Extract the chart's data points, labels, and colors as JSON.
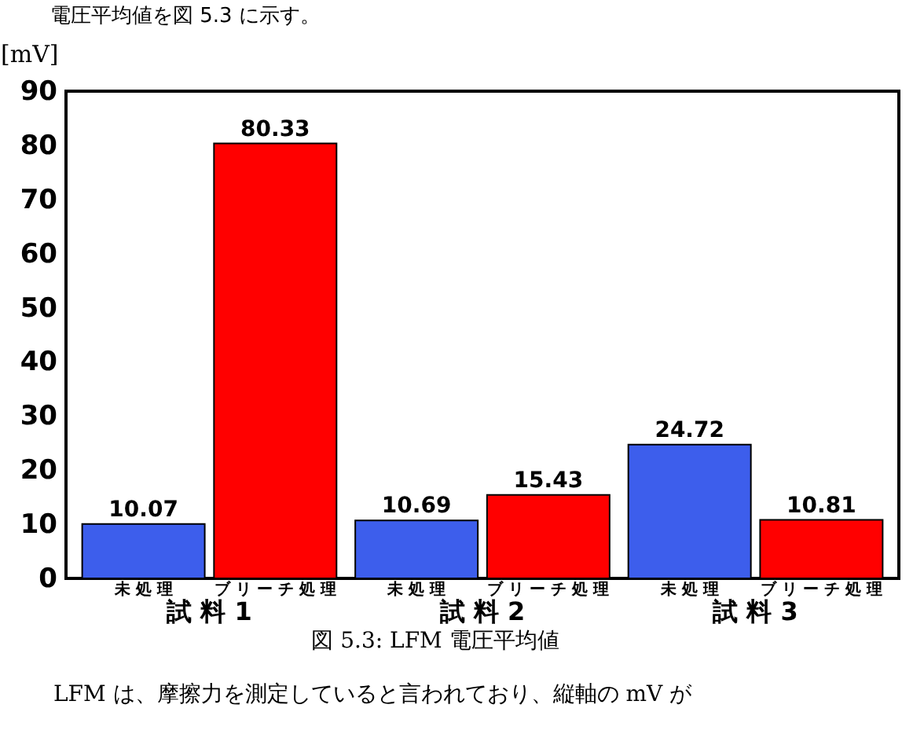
{
  "chart_data": {
    "type": "bar",
    "categories": [
      "試 料 1",
      "試 料 2",
      "試 料 3"
    ],
    "series": [
      {
        "name": "未 処 理",
        "color": "#3d5eec",
        "values": [
          10.07,
          10.69,
          24.72
        ]
      },
      {
        "name": "ブ リ ー チ 処 理",
        "color": "#ff0000",
        "values": [
          80.33,
          15.43,
          10.81
        ]
      }
    ],
    "ylabel": "[mV]",
    "ylim": [
      0,
      90
    ],
    "yticks": [
      0,
      10,
      20,
      30,
      40,
      50,
      60,
      70,
      80,
      90
    ],
    "grid": false,
    "legend": false,
    "data_labels": true,
    "annotations": [
      "電圧平均値を図 5.3 に示す。",
      "図 5.3: LFM 電圧平均値",
      "LFM は、摩擦力を測定していると言われており、縦軸の mV が"
    ]
  }
}
